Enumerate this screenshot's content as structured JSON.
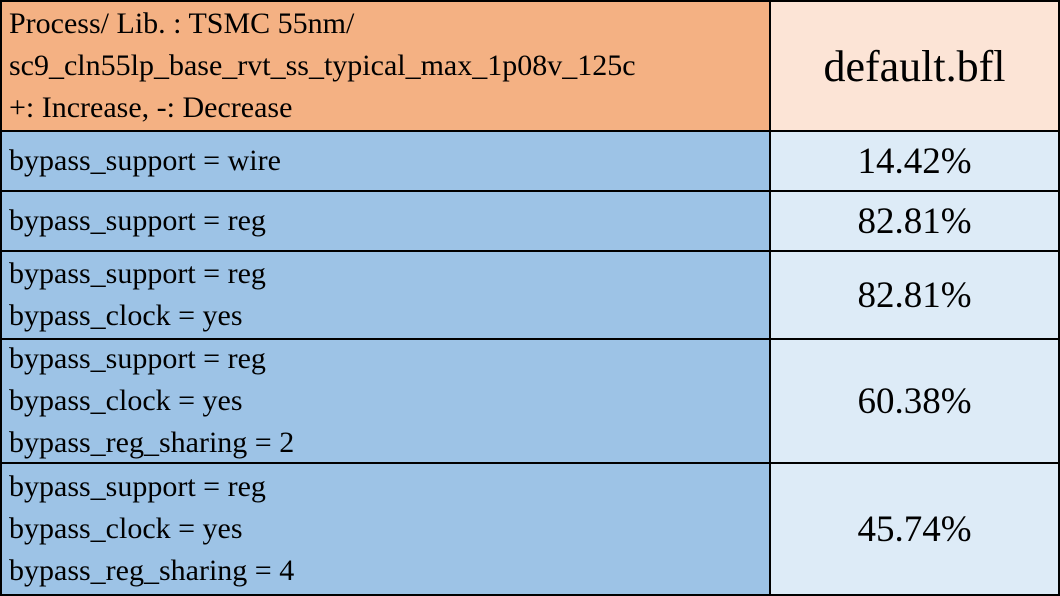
{
  "header": {
    "lines": [
      "Process/ Lib. : TSMC 55nm/",
      "sc9_cln55lp_base_rvt_ss_typical_max_1p08v_125c",
      "+: Increase, -: Decrease"
    ],
    "column": "default.bfl"
  },
  "rows": [
    {
      "lines": [
        "bypass_support = wire"
      ],
      "value": "14.42%"
    },
    {
      "lines": [
        "bypass_support = reg"
      ],
      "value": "82.81%"
    },
    {
      "lines": [
        "bypass_support = reg",
        "bypass_clock = yes"
      ],
      "value": "82.81%"
    },
    {
      "lines": [
        "bypass_support = reg",
        "bypass_clock = yes",
        "bypass_reg_sharing = 2"
      ],
      "value": "60.38%"
    },
    {
      "lines": [
        "bypass_support = reg",
        "bypass_clock = yes",
        "bypass_reg_sharing = 4"
      ],
      "value": "45.74%"
    }
  ]
}
